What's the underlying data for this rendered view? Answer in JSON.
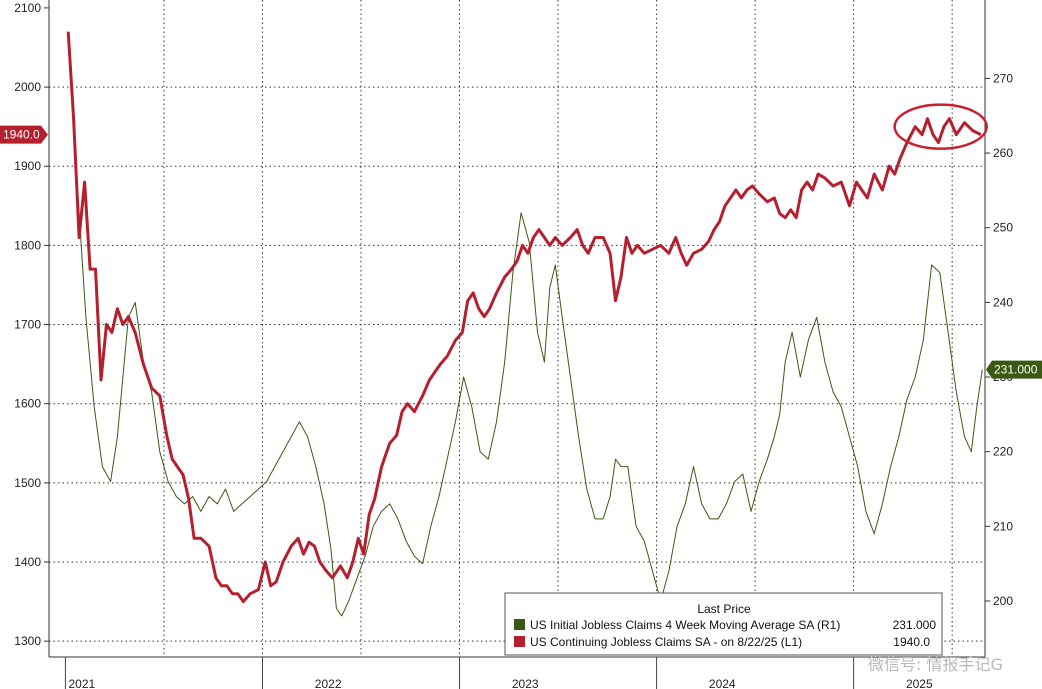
{
  "chart_data": {
    "type": "line",
    "title": "",
    "x_axis": {
      "labels": [
        "2021",
        "2022",
        "2023",
        "2024",
        "2025"
      ],
      "range": [
        "2020-12",
        "2025-09"
      ]
    },
    "y_left": {
      "label": "",
      "range": [
        1280,
        2110
      ],
      "ticks": [
        1300,
        1400,
        1500,
        1600,
        1700,
        1800,
        1900,
        2000,
        2100
      ]
    },
    "y_right": {
      "label": "",
      "range": [
        192.5,
        280.5
      ],
      "ticks": [
        200,
        210,
        220,
        230,
        240,
        250,
        260,
        270
      ]
    },
    "grid": true,
    "legend": {
      "placement": "bottom-right",
      "title": "Last Price",
      "items": [
        {
          "label": "US Initial Jobless Claims 4 Week Moving Average SA  (R1)",
          "value": "231.000",
          "color": "#3a5a14"
        },
        {
          "label": "US Continuing Jobless Claims SA -   on 8/22/25  (L1)",
          "value": "1940.0",
          "color": "#b5202e"
        }
      ]
    },
    "last_value_flags": {
      "left": "1940.0",
      "right": "231.000"
    },
    "series": [
      {
        "name": "US Continuing Jobless Claims SA -   on 8/22/25  (L1)",
        "axis": "left",
        "color": "#b5202e",
        "points": [
          [
            "2021-01",
            2070
          ],
          [
            "2021-01",
            1960
          ],
          [
            "2021-01",
            1810
          ],
          [
            "2021-02",
            1880
          ],
          [
            "2021-02",
            1770
          ],
          [
            "2021-02",
            1770
          ],
          [
            "2021-03",
            1630
          ],
          [
            "2021-03",
            1700
          ],
          [
            "2021-03",
            1690
          ],
          [
            "2021-04",
            1720
          ],
          [
            "2021-04",
            1700
          ],
          [
            "2021-04",
            1710
          ],
          [
            "2021-05",
            1690
          ],
          [
            "2021-05",
            1650
          ],
          [
            "2021-06",
            1620
          ],
          [
            "2021-06",
            1610
          ],
          [
            "2021-07",
            1560
          ],
          [
            "2021-07",
            1530
          ],
          [
            "2021-07",
            1520
          ],
          [
            "2021-08",
            1510
          ],
          [
            "2021-08",
            1480
          ],
          [
            "2021-08",
            1430
          ],
          [
            "2021-09",
            1430
          ],
          [
            "2021-09",
            1420
          ],
          [
            "2021-10",
            1380
          ],
          [
            "2021-10",
            1370
          ],
          [
            "2021-10",
            1370
          ],
          [
            "2021-11",
            1360
          ],
          [
            "2021-11",
            1360
          ],
          [
            "2021-11",
            1350
          ],
          [
            "2021-12",
            1360
          ],
          [
            "2021-12",
            1365
          ],
          [
            "2022-01",
            1400
          ],
          [
            "2022-01",
            1370
          ],
          [
            "2022-01",
            1375
          ],
          [
            "2022-02",
            1400
          ],
          [
            "2022-02",
            1420
          ],
          [
            "2022-03",
            1430
          ],
          [
            "2022-03",
            1410
          ],
          [
            "2022-03",
            1425
          ],
          [
            "2022-04",
            1420
          ],
          [
            "2022-04",
            1400
          ],
          [
            "2022-04",
            1390
          ],
          [
            "2022-05",
            1380
          ],
          [
            "2022-05",
            1395
          ],
          [
            "2022-06",
            1380
          ],
          [
            "2022-06",
            1400
          ],
          [
            "2022-06",
            1430
          ],
          [
            "2022-07",
            1410
          ],
          [
            "2022-07",
            1460
          ],
          [
            "2022-07",
            1480
          ],
          [
            "2022-08",
            1520
          ],
          [
            "2022-08",
            1550
          ],
          [
            "2022-09",
            1560
          ],
          [
            "2022-09",
            1590
          ],
          [
            "2022-09",
            1600
          ],
          [
            "2022-10",
            1590
          ],
          [
            "2022-10",
            1610
          ],
          [
            "2022-11",
            1630
          ],
          [
            "2022-11",
            1640
          ],
          [
            "2022-11",
            1650
          ],
          [
            "2022-12",
            1660
          ],
          [
            "2022-12",
            1680
          ],
          [
            "2023-01",
            1690
          ],
          [
            "2023-01",
            1730
          ],
          [
            "2023-01",
            1740
          ],
          [
            "2023-02",
            1720
          ],
          [
            "2023-02",
            1710
          ],
          [
            "2023-02",
            1720
          ],
          [
            "2023-03",
            1740
          ],
          [
            "2023-03",
            1760
          ],
          [
            "2023-04",
            1770
          ],
          [
            "2023-04",
            1780
          ],
          [
            "2023-04",
            1800
          ],
          [
            "2023-05",
            1790
          ],
          [
            "2023-05",
            1810
          ],
          [
            "2023-05",
            1820
          ],
          [
            "2023-06",
            1810
          ],
          [
            "2023-06",
            1800
          ],
          [
            "2023-06",
            1810
          ],
          [
            "2023-07",
            1800
          ],
          [
            "2023-07",
            1810
          ],
          [
            "2023-08",
            1820
          ],
          [
            "2023-08",
            1800
          ],
          [
            "2023-08",
            1790
          ],
          [
            "2023-09",
            1810
          ],
          [
            "2023-09",
            1810
          ],
          [
            "2023-10",
            1790
          ],
          [
            "2023-10",
            1730
          ],
          [
            "2023-10",
            1760
          ],
          [
            "2023-11",
            1810
          ],
          [
            "2023-11",
            1790
          ],
          [
            "2023-11",
            1800
          ],
          [
            "2023-12",
            1790
          ],
          [
            "2023-12",
            1795
          ],
          [
            "2024-01",
            1800
          ],
          [
            "2024-01",
            1790
          ],
          [
            "2024-02",
            1810
          ],
          [
            "2024-02",
            1790
          ],
          [
            "2024-02",
            1775
          ],
          [
            "2024-03",
            1790
          ],
          [
            "2024-03",
            1795
          ],
          [
            "2024-04",
            1805
          ],
          [
            "2024-04",
            1820
          ],
          [
            "2024-04",
            1830
          ],
          [
            "2024-05",
            1850
          ],
          [
            "2024-05",
            1860
          ],
          [
            "2024-05",
            1870
          ],
          [
            "2024-06",
            1860
          ],
          [
            "2024-06",
            1870
          ],
          [
            "2024-06",
            1875
          ],
          [
            "2024-07",
            1865
          ],
          [
            "2024-07",
            1855
          ],
          [
            "2024-08",
            1860
          ],
          [
            "2024-08",
            1840
          ],
          [
            "2024-08",
            1835
          ],
          [
            "2024-09",
            1845
          ],
          [
            "2024-09",
            1835
          ],
          [
            "2024-09",
            1870
          ],
          [
            "2024-10",
            1880
          ],
          [
            "2024-10",
            1870
          ],
          [
            "2024-10",
            1890
          ],
          [
            "2024-11",
            1885
          ],
          [
            "2024-11",
            1875
          ],
          [
            "2024-12",
            1880
          ],
          [
            "2024-12",
            1850
          ],
          [
            "2025-01",
            1880
          ],
          [
            "2025-01",
            1870
          ],
          [
            "2025-01",
            1860
          ],
          [
            "2025-02",
            1890
          ],
          [
            "2025-02",
            1870
          ],
          [
            "2025-03",
            1900
          ],
          [
            "2025-03",
            1890
          ],
          [
            "2025-03",
            1910
          ],
          [
            "2025-04",
            1930
          ],
          [
            "2025-04",
            1950
          ],
          [
            "2025-05",
            1940
          ],
          [
            "2025-05",
            1960
          ],
          [
            "2025-05",
            1940
          ],
          [
            "2025-06",
            1930
          ],
          [
            "2025-06",
            1950
          ],
          [
            "2025-06",
            1960
          ],
          [
            "2025-07",
            1940
          ],
          [
            "2025-07",
            1955
          ],
          [
            "2025-08",
            1945
          ],
          [
            "2025-08",
            1940
          ]
        ]
      },
      {
        "name": "US Initial Jobless Claims 4 Week Moving Average SA  (R1)",
        "axis": "right",
        "color": "#3a5a14",
        "points": [
          [
            "2021-01",
            272
          ],
          [
            "2021-01",
            255
          ],
          [
            "2021-02",
            238
          ],
          [
            "2021-02",
            226
          ],
          [
            "2021-03",
            218
          ],
          [
            "2021-03",
            216
          ],
          [
            "2021-04",
            222
          ],
          [
            "2021-04",
            230
          ],
          [
            "2021-04",
            238
          ],
          [
            "2021-05",
            240
          ],
          [
            "2021-05",
            232
          ],
          [
            "2021-06",
            228
          ],
          [
            "2021-06",
            220
          ],
          [
            "2021-07",
            216
          ],
          [
            "2021-07",
            214
          ],
          [
            "2021-08",
            213
          ],
          [
            "2021-08",
            214
          ],
          [
            "2021-09",
            212
          ],
          [
            "2021-09",
            214
          ],
          [
            "2021-10",
            213
          ],
          [
            "2021-10",
            215
          ],
          [
            "2021-11",
            212
          ],
          [
            "2021-11",
            213
          ],
          [
            "2021-12",
            214
          ],
          [
            "2021-12",
            215
          ],
          [
            "2022-01",
            216
          ],
          [
            "2022-01",
            218
          ],
          [
            "2022-02",
            220
          ],
          [
            "2022-02",
            222
          ],
          [
            "2022-03",
            224
          ],
          [
            "2022-03",
            222
          ],
          [
            "2022-04",
            218
          ],
          [
            "2022-04",
            213
          ],
          [
            "2022-05",
            207
          ],
          [
            "2022-05",
            199
          ],
          [
            "2022-05",
            198
          ],
          [
            "2022-06",
            200
          ],
          [
            "2022-06",
            203
          ],
          [
            "2022-07",
            206
          ],
          [
            "2022-07",
            210
          ],
          [
            "2022-08",
            212
          ],
          [
            "2022-08",
            213
          ],
          [
            "2022-09",
            211
          ],
          [
            "2022-09",
            208
          ],
          [
            "2022-10",
            206
          ],
          [
            "2022-10",
            205
          ],
          [
            "2022-11",
            210
          ],
          [
            "2022-11",
            214
          ],
          [
            "2022-12",
            219
          ],
          [
            "2022-12",
            224
          ],
          [
            "2023-01",
            230
          ],
          [
            "2023-01",
            226
          ],
          [
            "2023-02",
            220
          ],
          [
            "2023-02",
            219
          ],
          [
            "2023-03",
            224
          ],
          [
            "2023-03",
            232
          ],
          [
            "2023-04",
            244
          ],
          [
            "2023-04",
            252
          ],
          [
            "2023-05",
            248
          ],
          [
            "2023-05",
            236
          ],
          [
            "2023-06",
            232
          ],
          [
            "2023-06",
            242
          ],
          [
            "2023-06",
            245
          ],
          [
            "2023-07",
            238
          ],
          [
            "2023-07",
            230
          ],
          [
            "2023-08",
            222
          ],
          [
            "2023-08",
            215
          ],
          [
            "2023-09",
            211
          ],
          [
            "2023-09",
            211
          ],
          [
            "2023-10",
            214
          ],
          [
            "2023-10",
            219
          ],
          [
            "2023-10",
            218
          ],
          [
            "2023-11",
            218
          ],
          [
            "2023-11",
            210
          ],
          [
            "2023-12",
            208
          ],
          [
            "2023-12",
            204
          ],
          [
            "2024-01",
            200
          ],
          [
            "2024-01",
            204
          ],
          [
            "2024-02",
            210
          ],
          [
            "2024-02",
            213
          ],
          [
            "2024-03",
            218
          ],
          [
            "2024-03",
            213
          ],
          [
            "2024-04",
            211
          ],
          [
            "2024-04",
            211
          ],
          [
            "2024-05",
            213
          ],
          [
            "2024-05",
            216
          ],
          [
            "2024-06",
            217
          ],
          [
            "2024-06",
            212
          ],
          [
            "2024-07",
            216
          ],
          [
            "2024-07",
            219
          ],
          [
            "2024-08",
            222
          ],
          [
            "2024-08",
            225
          ],
          [
            "2024-08",
            232
          ],
          [
            "2024-09",
            236
          ],
          [
            "2024-09",
            230
          ],
          [
            "2024-10",
            235
          ],
          [
            "2024-10",
            238
          ],
          [
            "2024-11",
            232
          ],
          [
            "2024-11",
            228
          ],
          [
            "2024-12",
            226
          ],
          [
            "2024-12",
            222
          ],
          [
            "2025-01",
            218
          ],
          [
            "2025-01",
            212
          ],
          [
            "2025-02",
            209
          ],
          [
            "2025-02",
            213
          ],
          [
            "2025-03",
            218
          ],
          [
            "2025-03",
            222
          ],
          [
            "2025-04",
            227
          ],
          [
            "2025-04",
            230
          ],
          [
            "2025-05",
            235
          ],
          [
            "2025-05",
            245
          ],
          [
            "2025-06",
            244
          ],
          [
            "2025-06",
            236
          ],
          [
            "2025-07",
            228
          ],
          [
            "2025-07",
            222
          ],
          [
            "2025-08",
            220
          ],
          [
            "2025-08",
            226
          ],
          [
            "2025-08",
            231
          ]
        ]
      }
    ]
  },
  "watermark": "微信号: 情报手记G",
  "annotation": "circle-highlight"
}
